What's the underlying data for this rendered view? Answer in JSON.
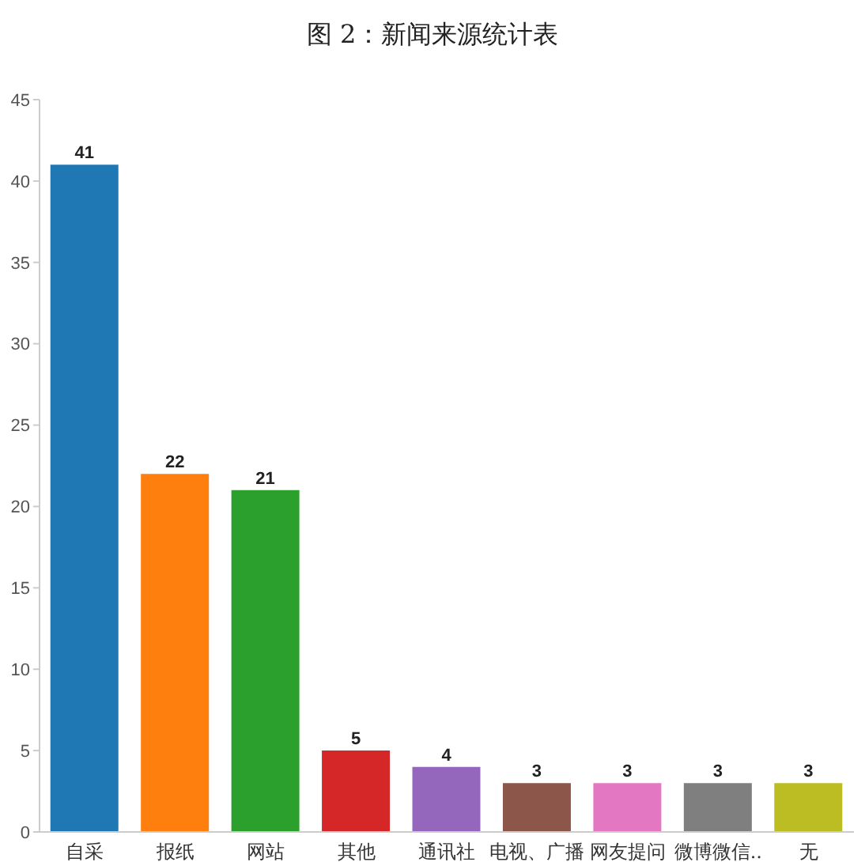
{
  "chart_data": {
    "type": "bar",
    "title": "图 2：新闻来源统计表",
    "categories": [
      "自采",
      "报纸",
      "网站",
      "其他",
      "通讯社",
      "电视、广播",
      "网友提问",
      "微博微信..",
      "无"
    ],
    "values": [
      41,
      22,
      21,
      5,
      4,
      3,
      3,
      3,
      3
    ],
    "colors": [
      "#1f77b4",
      "#ff7f0e",
      "#2ca02c",
      "#d62728",
      "#9467bd",
      "#8c564b",
      "#e377c2",
      "#7f7f7f",
      "#bcbd22"
    ],
    "ylim": [
      0,
      45
    ],
    "yticks": [
      0,
      5,
      10,
      15,
      20,
      25,
      30,
      35,
      40,
      45
    ],
    "grid": false,
    "data_labels": true
  }
}
